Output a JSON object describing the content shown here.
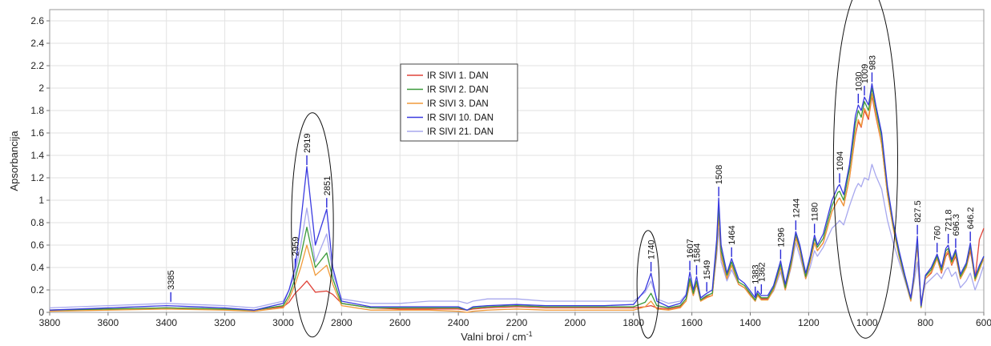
{
  "chart_data": {
    "type": "line",
    "xlabel": "Valni broi / cm",
    "xlabel_superscript": "-1",
    "ylabel": "Apsorbancija",
    "xlim": [
      3800,
      600
    ],
    "ylim": [
      0,
      2.7
    ],
    "x_ticks": [
      3800,
      3600,
      3400,
      3200,
      3000,
      2800,
      2600,
      2400,
      2200,
      2000,
      1800,
      1600,
      1400,
      1200,
      1000,
      800,
      600
    ],
    "y_ticks": [
      0,
      0.2,
      0.4,
      0.6,
      0.8,
      1,
      1.2,
      1.4,
      1.6,
      1.8,
      2,
      2.2,
      2.4,
      2.6
    ],
    "grid": true,
    "legend_position": "top-center",
    "series": [
      {
        "name": "IR SIVI 1. DAN",
        "color": "#e0443a",
        "x": [
          3800,
          3600,
          3400,
          3200,
          3100,
          3000,
          2980,
          2959,
          2940,
          2919,
          2890,
          2851,
          2830,
          2800,
          2700,
          2600,
          2500,
          2400,
          2370,
          2350,
          2300,
          2200,
          2100,
          2000,
          1900,
          1800,
          1760,
          1740,
          1720,
          1680,
          1640,
          1620,
          1607,
          1595,
          1584,
          1570,
          1549,
          1530,
          1515,
          1508,
          1500,
          1480,
          1464,
          1440,
          1420,
          1400,
          1383,
          1375,
          1362,
          1340,
          1320,
          1296,
          1280,
          1260,
          1244,
          1230,
          1210,
          1195,
          1180,
          1170,
          1150,
          1120,
          1100,
          1094,
          1080,
          1060,
          1040,
          1030,
          1020,
          1009,
          995,
          983,
          970,
          950,
          930,
          910,
          890,
          870,
          850,
          840,
          827.5,
          815,
          800,
          780,
          760,
          745,
          730,
          721.8,
          710,
          696.3,
          680,
          660,
          646.2,
          630,
          615,
          600
        ],
        "y": [
          0.02,
          0.03,
          0.04,
          0.03,
          0.02,
          0.05,
          0.09,
          0.17,
          0.22,
          0.28,
          0.18,
          0.19,
          0.16,
          0.08,
          0.04,
          0.03,
          0.03,
          0.03,
          0.02,
          0.03,
          0.04,
          0.05,
          0.04,
          0.04,
          0.04,
          0.04,
          0.05,
          0.06,
          0.04,
          0.03,
          0.05,
          0.1,
          0.26,
          0.15,
          0.25,
          0.1,
          0.14,
          0.15,
          0.55,
          0.88,
          0.5,
          0.3,
          0.42,
          0.25,
          0.22,
          0.16,
          0.1,
          0.16,
          0.12,
          0.12,
          0.2,
          0.4,
          0.2,
          0.42,
          0.67,
          0.55,
          0.3,
          0.45,
          0.62,
          0.55,
          0.62,
          0.9,
          1.0,
          1.02,
          0.95,
          1.2,
          1.58,
          1.7,
          1.65,
          1.8,
          1.72,
          1.93,
          1.75,
          1.5,
          1.05,
          0.75,
          0.5,
          0.3,
          0.12,
          0.3,
          0.6,
          0.05,
          0.3,
          0.35,
          0.48,
          0.35,
          0.5,
          0.53,
          0.42,
          0.5,
          0.3,
          0.4,
          0.55,
          0.3,
          0.65,
          0.75
        ]
      },
      {
        "name": "IR SIVI 2. DAN",
        "color": "#3a9a3a",
        "x": [
          3800,
          3600,
          3400,
          3200,
          3100,
          3000,
          2980,
          2959,
          2940,
          2919,
          2890,
          2851,
          2830,
          2800,
          2700,
          2600,
          2500,
          2400,
          2370,
          2350,
          2300,
          2200,
          2100,
          2000,
          1900,
          1800,
          1760,
          1740,
          1720,
          1680,
          1640,
          1620,
          1607,
          1595,
          1584,
          1570,
          1549,
          1530,
          1515,
          1508,
          1500,
          1480,
          1464,
          1440,
          1420,
          1400,
          1383,
          1375,
          1362,
          1340,
          1320,
          1296,
          1280,
          1260,
          1244,
          1230,
          1210,
          1195,
          1180,
          1170,
          1150,
          1120,
          1100,
          1094,
          1080,
          1060,
          1040,
          1030,
          1020,
          1009,
          995,
          983,
          970,
          950,
          930,
          910,
          890,
          870,
          850,
          840,
          827.5,
          815,
          800,
          780,
          760,
          745,
          730,
          721.8,
          710,
          696.3,
          680,
          660,
          646.2,
          630,
          615,
          600
        ],
        "y": [
          0.02,
          0.03,
          0.04,
          0.03,
          0.02,
          0.06,
          0.15,
          0.3,
          0.5,
          0.76,
          0.4,
          0.53,
          0.3,
          0.08,
          0.04,
          0.04,
          0.04,
          0.04,
          0.02,
          0.04,
          0.05,
          0.06,
          0.05,
          0.05,
          0.05,
          0.05,
          0.09,
          0.17,
          0.06,
          0.04,
          0.06,
          0.12,
          0.3,
          0.17,
          0.28,
          0.11,
          0.15,
          0.17,
          0.6,
          0.96,
          0.55,
          0.33,
          0.45,
          0.27,
          0.24,
          0.17,
          0.11,
          0.17,
          0.13,
          0.13,
          0.22,
          0.43,
          0.22,
          0.45,
          0.7,
          0.58,
          0.32,
          0.48,
          0.66,
          0.58,
          0.66,
          0.95,
          1.07,
          1.08,
          1.0,
          1.28,
          1.68,
          1.8,
          1.74,
          1.88,
          1.8,
          2.0,
          1.82,
          1.56,
          1.1,
          0.78,
          0.52,
          0.31,
          0.12,
          0.3,
          0.65,
          0.05,
          0.32,
          0.38,
          0.5,
          0.38,
          0.55,
          0.57,
          0.45,
          0.54,
          0.32,
          0.42,
          0.6,
          0.3,
          0.4,
          0.5
        ]
      },
      {
        "name": "IR SIVI 3. DAN",
        "color": "#f09a3a",
        "x": [
          3800,
          3600,
          3400,
          3200,
          3100,
          3000,
          2980,
          2959,
          2940,
          2919,
          2890,
          2851,
          2830,
          2800,
          2700,
          2600,
          2500,
          2400,
          2370,
          2350,
          2300,
          2200,
          2100,
          2000,
          1900,
          1800,
          1760,
          1740,
          1720,
          1680,
          1640,
          1620,
          1607,
          1595,
          1584,
          1570,
          1549,
          1530,
          1515,
          1508,
          1500,
          1480,
          1464,
          1440,
          1420,
          1400,
          1383,
          1375,
          1362,
          1340,
          1320,
          1296,
          1280,
          1260,
          1244,
          1230,
          1210,
          1195,
          1180,
          1170,
          1150,
          1120,
          1100,
          1094,
          1080,
          1060,
          1040,
          1030,
          1020,
          1009,
          995,
          983,
          970,
          950,
          930,
          910,
          890,
          870,
          850,
          840,
          827.5,
          815,
          800,
          780,
          760,
          745,
          730,
          721.8,
          710,
          696.3,
          680,
          660,
          646.2,
          630,
          615,
          600
        ],
        "y": [
          0.01,
          0.02,
          0.03,
          0.02,
          0.01,
          0.04,
          0.12,
          0.25,
          0.4,
          0.6,
          0.33,
          0.42,
          0.25,
          0.06,
          0.02,
          0.02,
          0.02,
          0.01,
          0.0,
          0.01,
          0.02,
          0.03,
          0.02,
          0.02,
          0.02,
          0.02,
          0.05,
          0.1,
          0.03,
          0.02,
          0.04,
          0.1,
          0.27,
          0.15,
          0.26,
          0.1,
          0.13,
          0.15,
          0.56,
          0.9,
          0.5,
          0.3,
          0.42,
          0.25,
          0.22,
          0.15,
          0.1,
          0.15,
          0.11,
          0.11,
          0.2,
          0.4,
          0.2,
          0.42,
          0.66,
          0.55,
          0.3,
          0.45,
          0.62,
          0.55,
          0.62,
          0.9,
          1.0,
          1.02,
          0.95,
          1.2,
          1.6,
          1.72,
          1.66,
          1.82,
          1.74,
          1.95,
          1.77,
          1.5,
          1.05,
          0.75,
          0.5,
          0.3,
          0.1,
          0.28,
          0.62,
          0.04,
          0.3,
          0.36,
          0.48,
          0.36,
          0.52,
          0.55,
          0.43,
          0.52,
          0.3,
          0.4,
          0.58,
          0.28,
          0.38,
          0.48
        ]
      },
      {
        "name": "IR SIVI 10. DAN",
        "color": "#3a3ae0",
        "x": [
          3800,
          3600,
          3400,
          3200,
          3100,
          3000,
          2980,
          2959,
          2940,
          2919,
          2890,
          2851,
          2830,
          2800,
          2700,
          2600,
          2500,
          2400,
          2370,
          2350,
          2300,
          2200,
          2100,
          2000,
          1900,
          1800,
          1760,
          1740,
          1720,
          1680,
          1640,
          1620,
          1607,
          1595,
          1584,
          1570,
          1549,
          1530,
          1515,
          1508,
          1500,
          1480,
          1464,
          1440,
          1420,
          1400,
          1383,
          1375,
          1362,
          1340,
          1320,
          1296,
          1280,
          1260,
          1244,
          1230,
          1210,
          1195,
          1180,
          1170,
          1150,
          1120,
          1100,
          1094,
          1080,
          1060,
          1040,
          1030,
          1020,
          1009,
          995,
          983,
          970,
          950,
          930,
          910,
          890,
          870,
          850,
          840,
          827.5,
          815,
          800,
          780,
          760,
          745,
          730,
          721.8,
          710,
          696.3,
          680,
          660,
          646.2,
          630,
          615,
          600
        ],
        "y": [
          0.02,
          0.04,
          0.06,
          0.04,
          0.02,
          0.08,
          0.2,
          0.4,
          0.8,
          1.3,
          0.6,
          0.92,
          0.4,
          0.1,
          0.05,
          0.05,
          0.05,
          0.05,
          0.02,
          0.05,
          0.06,
          0.07,
          0.06,
          0.06,
          0.06,
          0.07,
          0.2,
          0.35,
          0.1,
          0.05,
          0.08,
          0.15,
          0.36,
          0.2,
          0.32,
          0.13,
          0.17,
          0.2,
          0.65,
          1.02,
          0.6,
          0.35,
          0.48,
          0.3,
          0.26,
          0.19,
          0.13,
          0.19,
          0.15,
          0.15,
          0.24,
          0.46,
          0.25,
          0.48,
          0.72,
          0.6,
          0.35,
          0.5,
          0.69,
          0.6,
          0.7,
          1.0,
          1.12,
          1.14,
          1.05,
          1.32,
          1.75,
          1.85,
          1.8,
          1.92,
          1.85,
          2.04,
          1.85,
          1.6,
          1.12,
          0.8,
          0.55,
          0.33,
          0.13,
          0.32,
          0.68,
          0.06,
          0.33,
          0.4,
          0.52,
          0.4,
          0.57,
          0.6,
          0.47,
          0.56,
          0.34,
          0.44,
          0.62,
          0.32,
          0.42,
          0.5
        ]
      },
      {
        "name": "IR SIVI 21. DAN",
        "color": "#a8a8ee",
        "x": [
          3800,
          3600,
          3400,
          3200,
          3100,
          3000,
          2980,
          2959,
          2940,
          2919,
          2890,
          2851,
          2830,
          2800,
          2700,
          2600,
          2500,
          2400,
          2370,
          2350,
          2300,
          2200,
          2100,
          2000,
          1900,
          1800,
          1760,
          1740,
          1720,
          1680,
          1640,
          1620,
          1607,
          1595,
          1584,
          1570,
          1549,
          1530,
          1515,
          1508,
          1500,
          1480,
          1464,
          1440,
          1420,
          1400,
          1383,
          1375,
          1362,
          1340,
          1320,
          1296,
          1280,
          1260,
          1244,
          1230,
          1210,
          1195,
          1180,
          1170,
          1150,
          1120,
          1100,
          1094,
          1080,
          1060,
          1040,
          1030,
          1020,
          1009,
          995,
          983,
          970,
          950,
          930,
          910,
          890,
          870,
          850,
          840,
          827.5,
          815,
          800,
          780,
          760,
          745,
          730,
          721.8,
          710,
          696.3,
          680,
          660,
          646.2,
          630,
          615,
          600
        ],
        "y": [
          0.04,
          0.06,
          0.08,
          0.06,
          0.04,
          0.1,
          0.2,
          0.35,
          0.6,
          0.93,
          0.45,
          0.7,
          0.35,
          0.12,
          0.08,
          0.08,
          0.1,
          0.1,
          0.08,
          0.1,
          0.12,
          0.12,
          0.1,
          0.1,
          0.1,
          0.1,
          0.18,
          0.28,
          0.12,
          0.08,
          0.1,
          0.16,
          0.3,
          0.18,
          0.26,
          0.12,
          0.15,
          0.17,
          0.5,
          0.75,
          0.45,
          0.28,
          0.38,
          0.25,
          0.22,
          0.15,
          0.1,
          0.15,
          0.12,
          0.12,
          0.19,
          0.36,
          0.2,
          0.4,
          0.62,
          0.5,
          0.3,
          0.4,
          0.55,
          0.5,
          0.58,
          0.75,
          0.8,
          0.82,
          0.78,
          0.95,
          1.1,
          1.15,
          1.12,
          1.2,
          1.18,
          1.32,
          1.22,
          1.1,
          0.82,
          0.62,
          0.45,
          0.28,
          0.1,
          0.25,
          0.45,
          0.1,
          0.25,
          0.3,
          0.35,
          0.3,
          0.38,
          0.4,
          0.32,
          0.36,
          0.22,
          0.28,
          0.35,
          0.2,
          0.3,
          0.42
        ]
      }
    ],
    "annotations": [
      {
        "label": "3385",
        "x": 3385,
        "y": 0.08
      },
      {
        "label": "2959",
        "x": 2959,
        "y": 0.38
      },
      {
        "label": "2919",
        "x": 2919,
        "y": 1.3
      },
      {
        "label": "2851",
        "x": 2851,
        "y": 0.92
      },
      {
        "label": "1740",
        "x": 1740,
        "y": 0.35
      },
      {
        "label": "1607",
        "x": 1607,
        "y": 0.36
      },
      {
        "label": "1584",
        "x": 1584,
        "y": 0.32
      },
      {
        "label": "1549",
        "x": 1549,
        "y": 0.17
      },
      {
        "label": "1508",
        "x": 1508,
        "y": 1.02
      },
      {
        "label": "1464",
        "x": 1464,
        "y": 0.48
      },
      {
        "label": "1383",
        "x": 1383,
        "y": 0.13
      },
      {
        "label": "1362",
        "x": 1362,
        "y": 0.15
      },
      {
        "label": "1296",
        "x": 1296,
        "y": 0.46
      },
      {
        "label": "1244",
        "x": 1244,
        "y": 0.72
      },
      {
        "label": "1180",
        "x": 1180,
        "y": 0.69
      },
      {
        "label": "1094",
        "x": 1094,
        "y": 1.14
      },
      {
        "label": "1030",
        "x": 1030,
        "y": 1.85
      },
      {
        "label": "1009",
        "x": 1009,
        "y": 1.92
      },
      {
        "label": "983",
        "x": 983,
        "y": 2.04
      },
      {
        "label": "827.5",
        "x": 827.5,
        "y": 0.68
      },
      {
        "label": "760",
        "x": 760,
        "y": 0.52
      },
      {
        "label": "721.8",
        "x": 721.8,
        "y": 0.6
      },
      {
        "label": "696.3",
        "x": 696.3,
        "y": 0.56
      },
      {
        "label": "646.2",
        "x": 646.2,
        "y": 0.62
      }
    ],
    "highlight_ellipses": [
      {
        "cx": 2900,
        "cy": 0.78,
        "rx": 72,
        "ry": 1.0
      },
      {
        "cx": 1750,
        "cy": 0.25,
        "rx": 38,
        "ry": 0.48
      },
      {
        "cx": 1005,
        "cy": 1.35,
        "rx": 110,
        "ry": 1.58
      }
    ]
  }
}
